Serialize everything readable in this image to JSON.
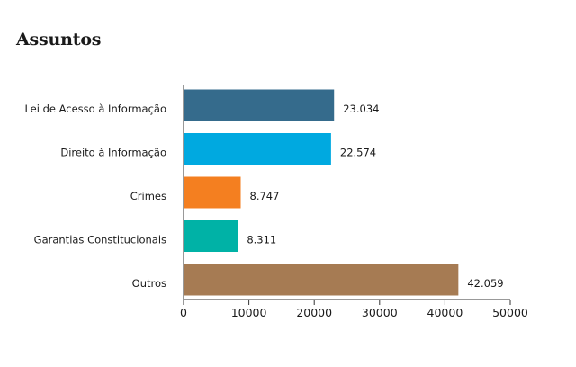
{
  "chart_data": {
    "type": "bar",
    "orientation": "horizontal",
    "title": "Assuntos",
    "categories": [
      "Lei de Acesso à Informação",
      "Direito à Informação",
      "Crimes",
      "Garantias Constitucionais",
      "Outros"
    ],
    "values": [
      23034,
      22574,
      8747,
      8311,
      42059
    ],
    "value_labels": [
      "23.034",
      "22.574",
      "8.747",
      "8.311",
      "42.059"
    ],
    "colors": [
      "#356b8c",
      "#00a9e0",
      "#f47f20",
      "#00b2a6",
      "#a67b53"
    ],
    "xlim": [
      0,
      50000
    ],
    "xticks": [
      0,
      10000,
      20000,
      30000,
      40000,
      50000
    ],
    "xlabel": "",
    "ylabel": "",
    "grid": false,
    "legend": "none"
  }
}
